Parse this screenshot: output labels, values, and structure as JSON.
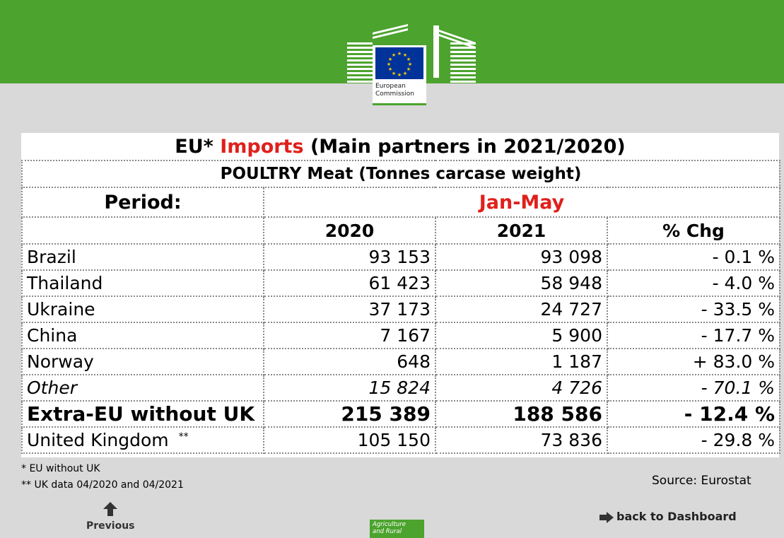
{
  "header": {
    "logo_line1": "European",
    "logo_line2": "Commission",
    "brand_color": "#4ca32e"
  },
  "table": {
    "title_prefix": "EU*",
    "title_highlight": "Imports",
    "title_suffix": "(Main partners in 2021/2020)",
    "subtitle": "POULTRY Meat (Tonnes carcase weight)",
    "period_label": "Period:",
    "period_value": "Jan-May",
    "columns": [
      "2020",
      "2021",
      "% Chg"
    ],
    "rows": [
      {
        "country": "Brazil",
        "y2020": "93 153",
        "y2021": "93 098",
        "chg": "- 0.1 %"
      },
      {
        "country": "Thailand",
        "y2020": "61 423",
        "y2021": "58 948",
        "chg": "- 4.0 %"
      },
      {
        "country": "Ukraine",
        "y2020": "37 173",
        "y2021": "24 727",
        "chg": "- 33.5 %"
      },
      {
        "country": "China",
        "y2020": "7 167",
        "y2021": "5 900",
        "chg": "- 17.7 %"
      },
      {
        "country": "Norway",
        "y2020": "648",
        "y2021": "1 187",
        "chg": "+ 83.0 %"
      }
    ],
    "other": {
      "country": "Other",
      "y2020": "15 824",
      "y2021": "4 726",
      "chg": "- 70.1 %"
    },
    "total": {
      "country": "Extra-EU without UK",
      "y2020": "215 389",
      "y2021": "188 586",
      "chg": "- 12.4 %"
    },
    "uk": {
      "country": "United Kingdom",
      "mark": "**",
      "y2020": "105 150",
      "y2021": "73 836",
      "chg": "- 29.8 %"
    },
    "accent_red": "#e0201b"
  },
  "footer": {
    "note1": "* EU without UK",
    "note2": "** UK data 04/2020 and 04/2021",
    "source": "Source: Eurostat",
    "back_label": "back to Dashboard",
    "previous_label": "Previous",
    "agri_line1": "Agriculture",
    "agri_line2": "and Rural"
  }
}
